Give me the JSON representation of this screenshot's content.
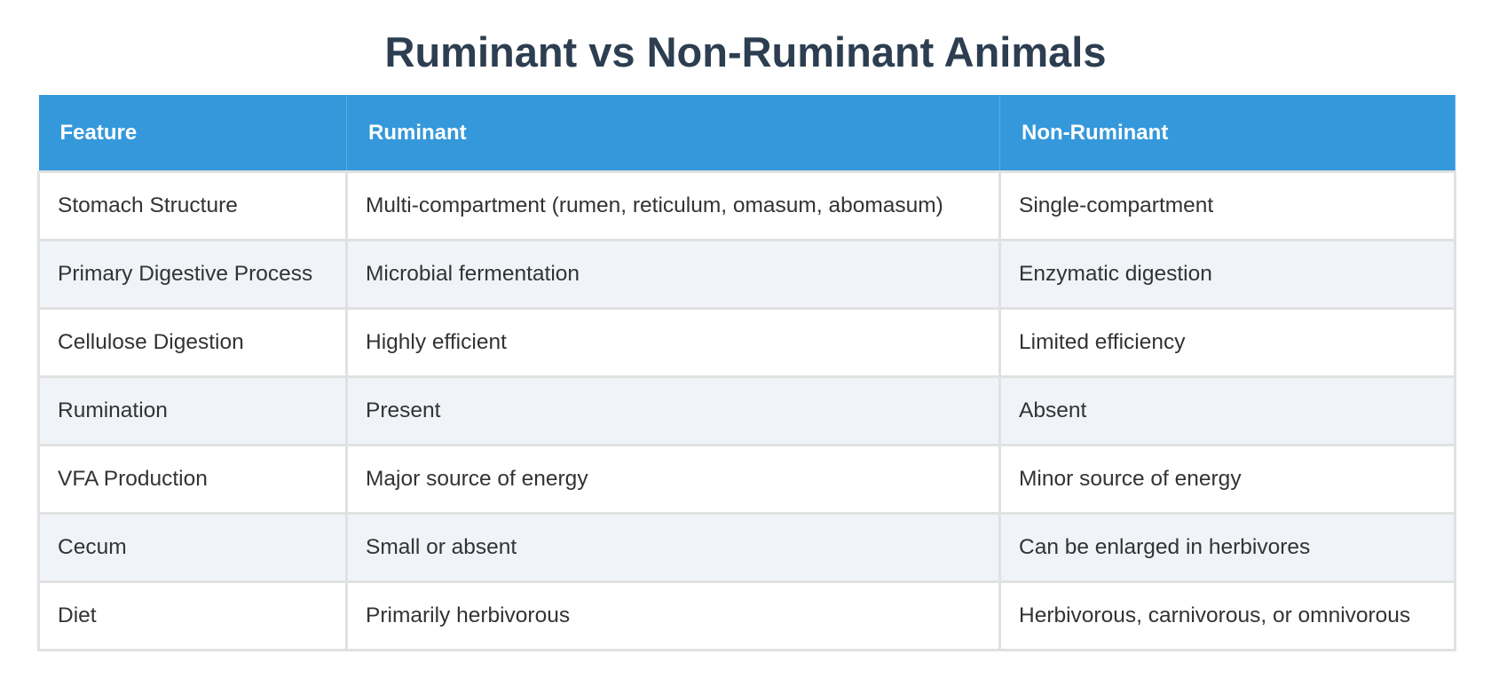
{
  "header": {
    "title": "Ruminant vs Non-Ruminant Animals"
  },
  "table": {
    "columns": [
      "Feature",
      "Ruminant",
      "Non-Ruminant"
    ],
    "rows": [
      [
        "Stomach Structure",
        "Multi-compartment (rumen, reticulum, omasum, abomasum)",
        "Single-compartment"
      ],
      [
        "Primary Digestive Process",
        "Microbial fermentation",
        "Enzymatic digestion"
      ],
      [
        "Cellulose Digestion",
        "Highly efficient",
        "Limited efficiency"
      ],
      [
        "Rumination",
        "Present",
        "Absent"
      ],
      [
        "VFA Production",
        "Major source of energy",
        "Minor source of energy"
      ],
      [
        "Cecum",
        "Small or absent",
        "Can be enlarged in herbivores"
      ],
      [
        "Diet",
        "Primarily herbivorous",
        "Herbivorous, carnivorous, or omnivorous"
      ]
    ]
  }
}
